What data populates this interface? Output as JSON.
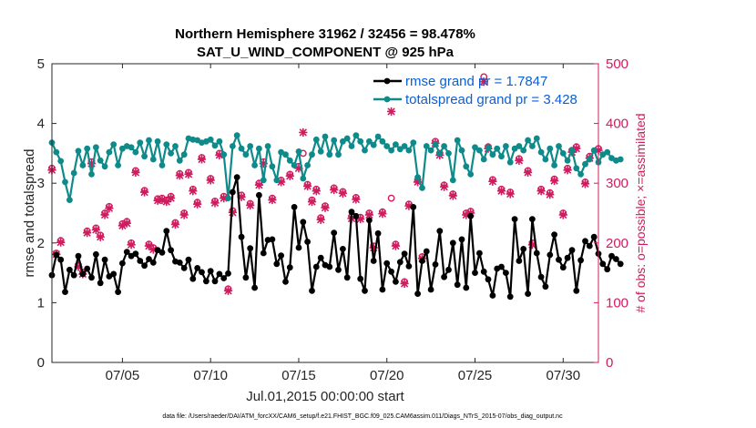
{
  "colors": {
    "rmse": "#000000",
    "spread": "#0f8a8a",
    "obs": "#d01c5f",
    "legend_text": "#0b5fd6",
    "axis": "#262626"
  },
  "chart_data": {
    "type": "line",
    "title_line1": "Northern Hemisphere 31962 / 32456 = 98.478%",
    "title_line2": "SAT_U_WIND_COMPONENT @ 925 hPa",
    "ylabel_left": "rmse and totalspread",
    "ylabel_right": "# of obs: o=possible; ×=assimilated",
    "xlabel": "Jul.01,2015 00:00:00 start",
    "footer": "data file: /Users/raeder/DAI/ATM_forcXX/CAM6_setup/f.e21.FHIST_BGC.f09_025.CAM6assim.011/Diags_NTrS_2015-07/obs_diag_output.nc",
    "xlim": [
      1,
      32
    ],
    "ylim_left": [
      0,
      5
    ],
    "ylim_right": [
      0,
      500
    ],
    "yticks_left": [
      "0",
      "1",
      "2",
      "3",
      "4",
      "5"
    ],
    "yticks_right": [
      "0",
      "100",
      "200",
      "300",
      "400",
      "500"
    ],
    "xticks": [
      {
        "value": 5,
        "label": "07/05"
      },
      {
        "value": 10,
        "label": "07/10"
      },
      {
        "value": 15,
        "label": "07/15"
      },
      {
        "value": 20,
        "label": "07/20"
      },
      {
        "value": 25,
        "label": "07/25"
      },
      {
        "value": 30,
        "label": "07/30"
      }
    ],
    "legend": [
      {
        "name": "rmse grand pr = 1.7847",
        "series": "rmse"
      },
      {
        "name": "totalspread grand pr = 3.428",
        "series": "spread"
      }
    ],
    "series": [
      {
        "name": "rmse",
        "x_start": 1.0,
        "x_step": 0.25,
        "values": [
          1.46,
          1.8,
          1.72,
          1.18,
          1.55,
          1.46,
          1.78,
          1.48,
          1.57,
          1.42,
          1.81,
          1.33,
          1.72,
          1.44,
          1.48,
          1.18,
          1.66,
          1.85,
          1.78,
          1.82,
          1.7,
          1.62,
          1.73,
          1.67,
          1.88,
          1.84,
          2.2,
          1.88,
          1.69,
          1.67,
          1.58,
          1.72,
          1.4,
          1.58,
          1.51,
          1.36,
          1.53,
          1.36,
          1.48,
          1.41,
          1.49,
          1.55,
          1.48,
          1.63,
          1.42,
          1.91,
          1.88,
          1.72,
          1.83,
          1.63,
          2.06,
          1.65,
          1.79,
          2.3,
          1.59,
          1.5,
          1.92,
          1.65,
          2.02,
          1.8,
          1.6,
          1.75,
          1.63,
          1.6,
          2.17,
          1.55,
          1.9,
          1.42,
          1.79,
          1.62,
          1.95,
          2.05,
          2.38,
          1.7,
          2.16,
          1.49,
          1.66,
          1.52,
          1.96,
          1.68,
          1.82,
          1.61,
          1.51,
          1.57,
          1.7,
          1.86,
          1.52,
          1.64,
          2.2,
          1.43,
          1.55,
          2.0,
          1.3,
          2.06,
          1.78,
          1.62,
          1.5,
          1.83,
          1.52,
          1.39,
          1.79,
          1.57,
          1.6,
          1.5,
          1.6,
          1.78,
          1.7,
          1.49,
          1.78,
          1.53,
          1.83,
          1.43,
          1.27,
          1.8,
          2.14,
          1.72,
          1.59,
          1.75,
          1.88,
          1.85,
          1.71,
          2.03,
          1.43,
          1.76,
          1.82,
          1.65,
          1.56,
          1.78,
          1.73,
          1.65
        ],
        "events": [
          {
            "x": 11.5,
            "y": 3.1
          },
          {
            "x": 11.25,
            "y": 2.85
          },
          {
            "x": 11.75,
            "y": 2.1
          },
          {
            "x": 12.75,
            "y": 2.8
          },
          {
            "x": 12.5,
            "y": 1.25
          },
          {
            "x": 13.25,
            "y": 2.05
          },
          {
            "x": 14.25,
            "y": 1.35
          },
          {
            "x": 14.75,
            "y": 2.6
          },
          {
            "x": 15.25,
            "y": 2.35
          },
          {
            "x": 15.75,
            "y": 1.2
          },
          {
            "x": 18.0,
            "y": 2.52
          },
          {
            "x": 18.25,
            "y": 2.45
          },
          {
            "x": 18.5,
            "y": 1.4
          },
          {
            "x": 18.75,
            "y": 1.2
          },
          {
            "x": 19.75,
            "y": 1.22
          },
          {
            "x": 20.5,
            "y": 1.35
          },
          {
            "x": 21.5,
            "y": 2.6
          },
          {
            "x": 21.75,
            "y": 1.15
          },
          {
            "x": 22.5,
            "y": 1.22
          },
          {
            "x": 24.75,
            "y": 2.45
          },
          {
            "x": 24.5,
            "y": 1.25
          },
          {
            "x": 26.0,
            "y": 1.12
          },
          {
            "x": 27.0,
            "y": 1.1
          },
          {
            "x": 27.25,
            "y": 2.4
          },
          {
            "x": 27.75,
            "y": 1.9
          },
          {
            "x": 28.0,
            "y": 1.15
          },
          {
            "x": 28.25,
            "y": 2.4
          },
          {
            "x": 30.75,
            "y": 1.2
          },
          {
            "x": 31.75,
            "y": 2.1
          },
          {
            "x": 31.5,
            "y": 1.95
          }
        ]
      },
      {
        "name": "totalspread",
        "x_start": 1.0,
        "x_step": 0.25,
        "values": [
          3.68,
          3.52,
          3.37,
          2.95,
          3.58,
          3.17,
          3.54,
          3.3,
          3.58,
          3.15,
          3.6,
          3.38,
          3.28,
          3.52,
          3.65,
          3.3,
          3.58,
          3.62,
          3.6,
          3.52,
          3.68,
          3.45,
          3.72,
          3.4,
          3.7,
          3.3,
          3.65,
          3.5,
          3.62,
          3.38,
          3.48,
          3.75,
          3.73,
          3.72,
          3.68,
          3.7,
          3.73,
          3.63,
          3.7,
          3.48,
          3.75,
          3.62,
          3.8,
          3.58,
          3.48,
          3.62,
          3.3,
          3.58,
          3.42,
          3.62,
          3.28,
          3.05,
          3.52,
          3.48,
          3.38,
          3.3,
          3.53,
          3.08,
          3.3,
          3.48,
          3.73,
          3.53,
          3.78,
          3.48,
          3.72,
          3.48,
          3.7,
          3.75,
          3.62,
          3.8,
          3.7,
          3.55,
          3.7,
          3.64,
          3.78,
          3.7,
          3.62,
          3.55,
          3.65,
          3.57,
          3.62,
          3.55,
          3.68,
          3.58,
          3.4,
          3.62,
          3.55,
          3.65,
          3.5,
          3.62,
          3.5,
          3.55,
          3.72,
          3.55,
          3.28,
          3.6,
          3.6,
          3.55,
          3.4,
          3.6,
          3.48,
          3.58,
          3.45,
          3.62,
          3.35,
          3.58,
          3.62,
          3.55,
          3.72,
          3.62,
          3.75,
          3.52,
          3.4,
          3.58,
          3.3,
          3.62,
          3.5,
          3.38,
          3.55,
          3.25,
          3.48,
          3.42,
          3.4,
          3.55,
          3.35,
          3.48,
          3.52,
          3.42,
          3.38,
          3.4
        ],
        "events": [
          {
            "x": 1.75,
            "y": 3.02
          },
          {
            "x": 2.0,
            "y": 2.72
          },
          {
            "x": 11.0,
            "y": 2.75
          },
          {
            "x": 13.0,
            "y": 3.05
          },
          {
            "x": 21.75,
            "y": 3.1
          },
          {
            "x": 22.0,
            "y": 2.92
          },
          {
            "x": 23.75,
            "y": 3.05
          },
          {
            "x": 24.75,
            "y": 3.15
          },
          {
            "x": 31.0,
            "y": 3.15
          },
          {
            "x": 31.25,
            "y": 3.32
          }
        ]
      }
    ],
    "obs_possible": [
      {
        "x": 1.0,
        "y": 325
      },
      {
        "x": 1.25,
        "y": 183
      },
      {
        "x": 1.5,
        "y": 204
      },
      {
        "x": 2.5,
        "y": 163
      },
      {
        "x": 2.75,
        "y": 151
      },
      {
        "x": 3.0,
        "y": 220
      },
      {
        "x": 3.25,
        "y": 336
      },
      {
        "x": 3.5,
        "y": 225
      },
      {
        "x": 3.75,
        "y": 213
      },
      {
        "x": 4.0,
        "y": 250
      },
      {
        "x": 4.25,
        "y": 261
      },
      {
        "x": 5.0,
        "y": 232
      },
      {
        "x": 5.25,
        "y": 236
      },
      {
        "x": 5.5,
        "y": 200
      },
      {
        "x": 5.75,
        "y": 321
      },
      {
        "x": 6.25,
        "y": 288
      },
      {
        "x": 6.5,
        "y": 198
      },
      {
        "x": 6.75,
        "y": 192
      },
      {
        "x": 7.0,
        "y": 274
      },
      {
        "x": 7.25,
        "y": 275
      },
      {
        "x": 7.5,
        "y": 272
      },
      {
        "x": 7.75,
        "y": 278
      },
      {
        "x": 8.0,
        "y": 234
      },
      {
        "x": 8.25,
        "y": 316
      },
      {
        "x": 8.5,
        "y": 250
      },
      {
        "x": 8.75,
        "y": 318
      },
      {
        "x": 9.0,
        "y": 290
      },
      {
        "x": 9.25,
        "y": 268
      },
      {
        "x": 9.5,
        "y": 343
      },
      {
        "x": 10.0,
        "y": 308
      },
      {
        "x": 10.25,
        "y": 270
      },
      {
        "x": 10.5,
        "y": 350
      },
      {
        "x": 10.75,
        "y": 278
      },
      {
        "x": 11.0,
        "y": 123
      },
      {
        "x": 11.25,
        "y": 254
      },
      {
        "x": 11.75,
        "y": 280
      },
      {
        "x": 12.25,
        "y": 266
      },
      {
        "x": 12.75,
        "y": 300
      },
      {
        "x": 13.0,
        "y": 336
      },
      {
        "x": 13.5,
        "y": 275
      },
      {
        "x": 14.0,
        "y": 305
      },
      {
        "x": 14.5,
        "y": 315
      },
      {
        "x": 15.0,
        "y": 328
      },
      {
        "x": 15.25,
        "y": 350
      },
      {
        "x": 15.5,
        "y": 298
      },
      {
        "x": 15.75,
        "y": 272
      },
      {
        "x": 16.0,
        "y": 290
      },
      {
        "x": 16.25,
        "y": 242
      },
      {
        "x": 16.5,
        "y": 262
      },
      {
        "x": 17.0,
        "y": 292
      },
      {
        "x": 17.5,
        "y": 286
      },
      {
        "x": 18.0,
        "y": 244
      },
      {
        "x": 18.25,
        "y": 276
      },
      {
        "x": 18.5,
        "y": 243
      },
      {
        "x": 19.0,
        "y": 250
      },
      {
        "x": 19.25,
        "y": 195
      },
      {
        "x": 19.75,
        "y": 252
      },
      {
        "x": 20.25,
        "y": 275
      },
      {
        "x": 20.5,
        "y": 198
      },
      {
        "x": 21.0,
        "y": 135
      },
      {
        "x": 21.25,
        "y": 265
      },
      {
        "x": 21.75,
        "y": 305
      },
      {
        "x": 22.0,
        "y": 177
      },
      {
        "x": 22.75,
        "y": 370
      },
      {
        "x": 23.0,
        "y": 350
      },
      {
        "x": 23.25,
        "y": 297
      },
      {
        "x": 23.75,
        "y": 282
      },
      {
        "x": 24.5,
        "y": 250
      },
      {
        "x": 24.75,
        "y": 253
      },
      {
        "x": 25.5,
        "y": 478
      },
      {
        "x": 25.75,
        "y": 361
      },
      {
        "x": 26.0,
        "y": 306
      },
      {
        "x": 26.5,
        "y": 290
      },
      {
        "x": 27.0,
        "y": 285
      },
      {
        "x": 27.5,
        "y": 341
      },
      {
        "x": 28.0,
        "y": 321
      },
      {
        "x": 28.25,
        "y": 200
      },
      {
        "x": 28.75,
        "y": 290
      },
      {
        "x": 29.25,
        "y": 284
      },
      {
        "x": 29.5,
        "y": 307
      },
      {
        "x": 30.0,
        "y": 250
      },
      {
        "x": 30.25,
        "y": 325
      },
      {
        "x": 30.5,
        "y": 355
      },
      {
        "x": 30.75,
        "y": 361
      },
      {
        "x": 31.25,
        "y": 302
      },
      {
        "x": 31.5,
        "y": 345
      },
      {
        "x": 32.0,
        "y": 358
      }
    ],
    "obs_assimilated": [
      {
        "x": 1.0,
        "y": 322
      },
      {
        "x": 1.25,
        "y": 181
      },
      {
        "x": 1.5,
        "y": 201
      },
      {
        "x": 2.5,
        "y": 160
      },
      {
        "x": 2.75,
        "y": 148
      },
      {
        "x": 3.0,
        "y": 217
      },
      {
        "x": 3.25,
        "y": 333
      },
      {
        "x": 3.5,
        "y": 222
      },
      {
        "x": 3.75,
        "y": 210
      },
      {
        "x": 4.0,
        "y": 247
      },
      {
        "x": 4.25,
        "y": 258
      },
      {
        "x": 5.0,
        "y": 229
      },
      {
        "x": 5.25,
        "y": 233
      },
      {
        "x": 5.5,
        "y": 197
      },
      {
        "x": 5.75,
        "y": 318
      },
      {
        "x": 6.25,
        "y": 285
      },
      {
        "x": 6.5,
        "y": 195
      },
      {
        "x": 6.75,
        "y": 189
      },
      {
        "x": 7.0,
        "y": 271
      },
      {
        "x": 7.25,
        "y": 272
      },
      {
        "x": 7.5,
        "y": 269
      },
      {
        "x": 7.75,
        "y": 275
      },
      {
        "x": 8.0,
        "y": 231
      },
      {
        "x": 8.25,
        "y": 313
      },
      {
        "x": 8.5,
        "y": 247
      },
      {
        "x": 8.75,
        "y": 315
      },
      {
        "x": 9.0,
        "y": 287
      },
      {
        "x": 9.25,
        "y": 265
      },
      {
        "x": 9.5,
        "y": 340
      },
      {
        "x": 10.0,
        "y": 305
      },
      {
        "x": 10.25,
        "y": 267
      },
      {
        "x": 10.5,
        "y": 347
      },
      {
        "x": 10.75,
        "y": 275
      },
      {
        "x": 11.0,
        "y": 120
      },
      {
        "x": 11.25,
        "y": 251
      },
      {
        "x": 11.75,
        "y": 277
      },
      {
        "x": 12.25,
        "y": 263
      },
      {
        "x": 12.75,
        "y": 297
      },
      {
        "x": 13.0,
        "y": 333
      },
      {
        "x": 13.5,
        "y": 272
      },
      {
        "x": 14.0,
        "y": 302
      },
      {
        "x": 14.5,
        "y": 312
      },
      {
        "x": 15.0,
        "y": 325
      },
      {
        "x": 15.25,
        "y": 385
      },
      {
        "x": 15.5,
        "y": 295
      },
      {
        "x": 15.75,
        "y": 269
      },
      {
        "x": 16.0,
        "y": 287
      },
      {
        "x": 16.25,
        "y": 239
      },
      {
        "x": 16.5,
        "y": 259
      },
      {
        "x": 17.0,
        "y": 289
      },
      {
        "x": 17.5,
        "y": 283
      },
      {
        "x": 18.0,
        "y": 241
      },
      {
        "x": 18.25,
        "y": 273
      },
      {
        "x": 18.5,
        "y": 240
      },
      {
        "x": 19.0,
        "y": 247
      },
      {
        "x": 19.25,
        "y": 192
      },
      {
        "x": 19.75,
        "y": 249
      },
      {
        "x": 20.25,
        "y": 420
      },
      {
        "x": 20.5,
        "y": 195
      },
      {
        "x": 21.0,
        "y": 132
      },
      {
        "x": 21.25,
        "y": 262
      },
      {
        "x": 21.75,
        "y": 302
      },
      {
        "x": 22.0,
        "y": 174
      },
      {
        "x": 22.75,
        "y": 367
      },
      {
        "x": 23.0,
        "y": 347
      },
      {
        "x": 23.25,
        "y": 294
      },
      {
        "x": 23.75,
        "y": 279
      },
      {
        "x": 24.5,
        "y": 247
      },
      {
        "x": 24.75,
        "y": 250
      },
      {
        "x": 25.5,
        "y": 470
      },
      {
        "x": 25.75,
        "y": 358
      },
      {
        "x": 26.0,
        "y": 303
      },
      {
        "x": 26.5,
        "y": 287
      },
      {
        "x": 27.0,
        "y": 282
      },
      {
        "x": 27.5,
        "y": 338
      },
      {
        "x": 28.0,
        "y": 318
      },
      {
        "x": 28.25,
        "y": 197
      },
      {
        "x": 28.75,
        "y": 287
      },
      {
        "x": 29.25,
        "y": 281
      },
      {
        "x": 29.5,
        "y": 304
      },
      {
        "x": 30.0,
        "y": 247
      },
      {
        "x": 30.25,
        "y": 322
      },
      {
        "x": 30.5,
        "y": 352
      },
      {
        "x": 30.75,
        "y": 358
      },
      {
        "x": 31.25,
        "y": 299
      },
      {
        "x": 31.5,
        "y": 342
      },
      {
        "x": 32.0,
        "y": 355
      }
    ]
  }
}
